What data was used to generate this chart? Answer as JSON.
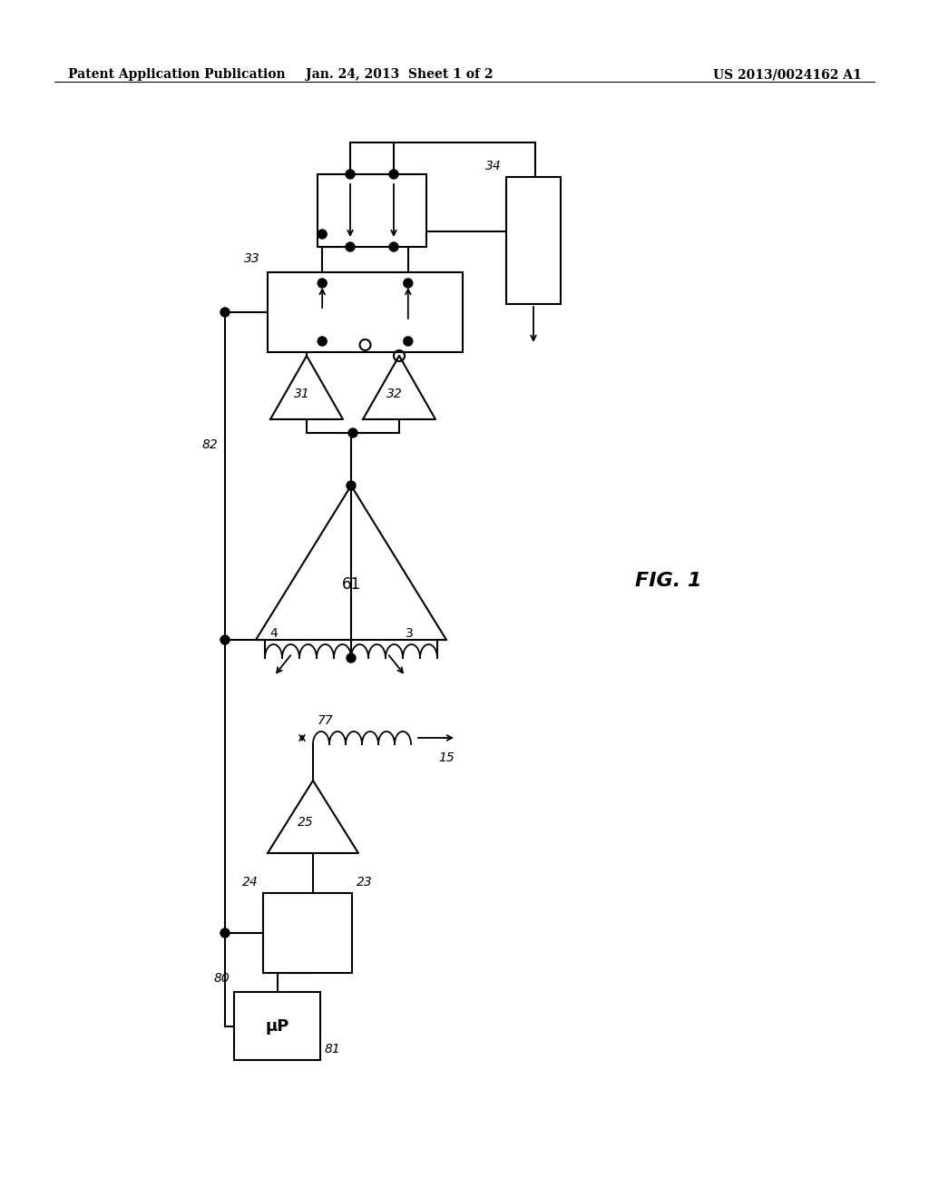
{
  "bg": "#ffffff",
  "header_left": "Patent Application Publication",
  "header_center": "Jan. 24, 2013  Sheet 1 of 2",
  "header_right": "US 2013/0024162 A1",
  "fig_label": "FIG. 1",
  "lw": 1.5
}
